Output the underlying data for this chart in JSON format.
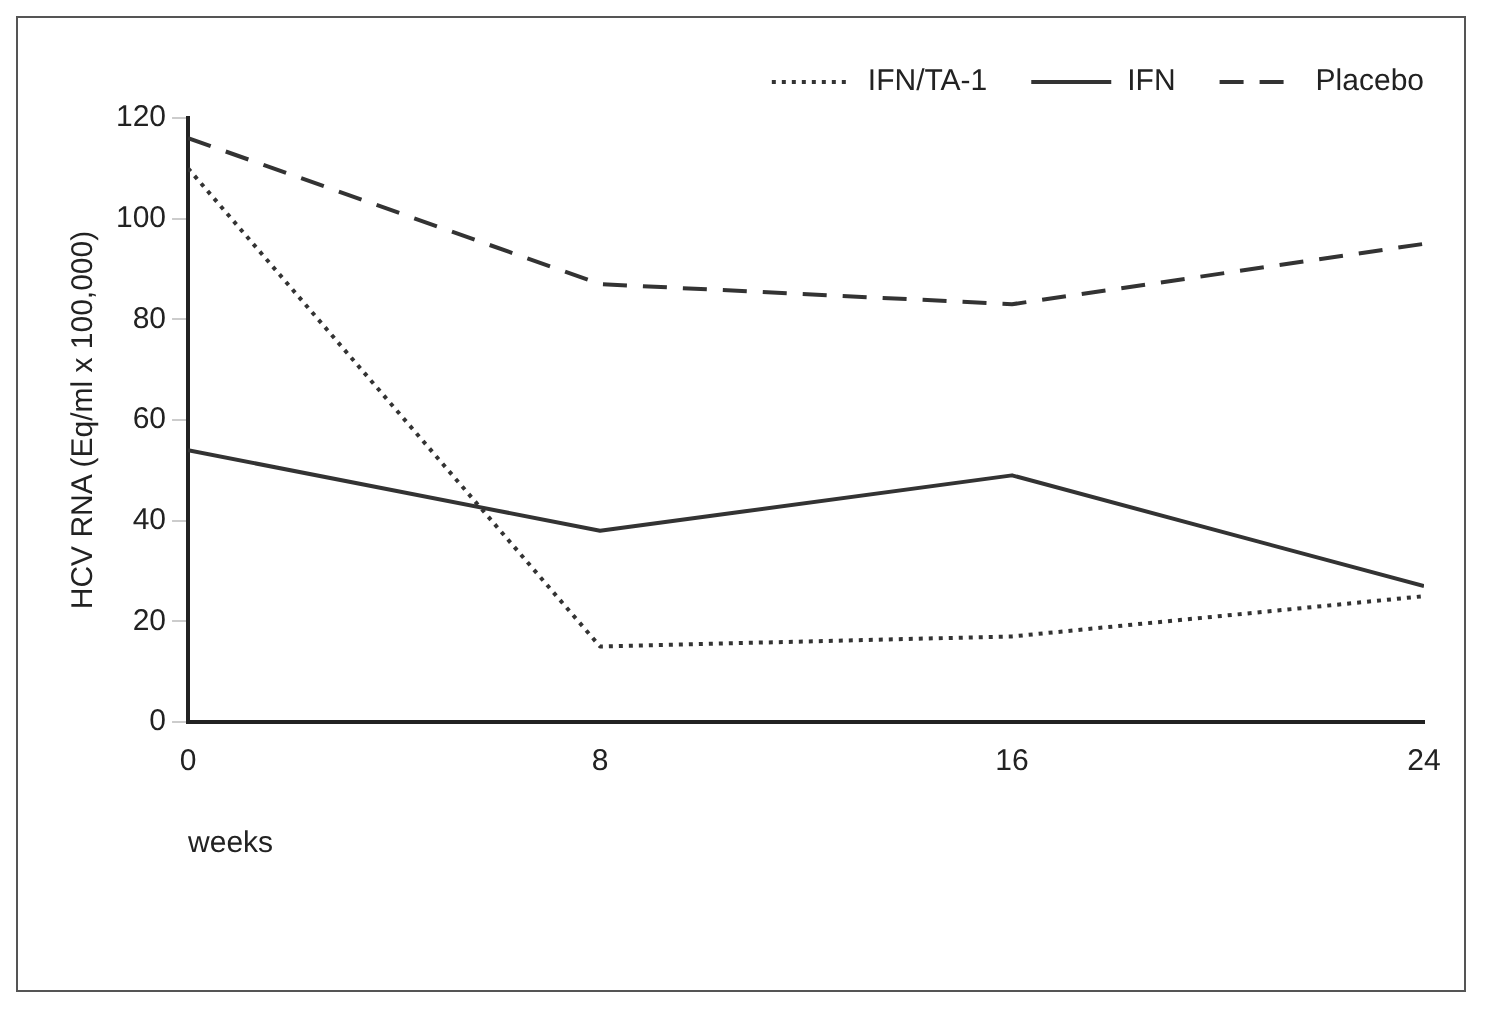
{
  "chart_data": {
    "type": "line",
    "ylabel": "HCV RNA (Eq/ml x 100,000)",
    "xlabel": "weeks",
    "x": [
      0,
      8,
      16,
      24
    ],
    "xlim": [
      0,
      24
    ],
    "xticks": [
      0,
      8,
      16,
      24
    ],
    "ylim": [
      0,
      120
    ],
    "yticks": [
      0,
      20,
      40,
      60,
      80,
      100,
      120
    ],
    "grid": false,
    "legend": "top",
    "marker": "none",
    "series": [
      {
        "name": "IFN/TA-1",
        "color": "#333333",
        "line_style": "dotted",
        "values": [
          110,
          15,
          17,
          25
        ]
      },
      {
        "name": "IFN",
        "color": "#333333",
        "line_style": "solid",
        "values": [
          54,
          38,
          49,
          27
        ]
      },
      {
        "name": "Placebo",
        "color": "#333333",
        "line_style": "dashed",
        "values": [
          116,
          87,
          83,
          95
        ]
      }
    ]
  }
}
